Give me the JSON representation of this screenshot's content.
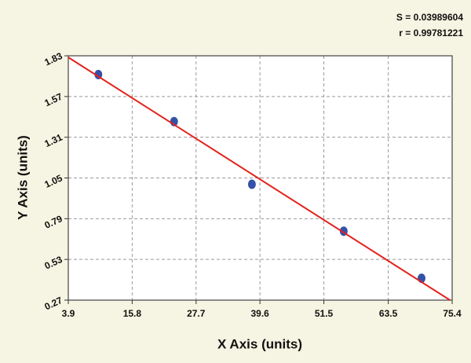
{
  "chart_data": {
    "type": "scatter",
    "annotations": [
      "S = 0.03989604",
      "r = 0.99781221"
    ],
    "xlabel": "X Axis (units)",
    "ylabel": "Y Axis (units)",
    "series": [
      {
        "type": "scatter",
        "color": "#3452a8",
        "x": [
          9.5,
          23.6,
          38.1,
          55.2,
          69.7
        ],
        "values": [
          1.71,
          1.41,
          1.01,
          0.71,
          0.41
        ]
      },
      {
        "type": "line",
        "color": "#e3221c",
        "x": [
          3.9,
          75.0
        ],
        "values": [
          1.82,
          0.27
        ]
      }
    ],
    "xlim": [
      3.9,
      75.4
    ],
    "ylim": [
      0.27,
      1.83
    ],
    "xticks": [
      3.9,
      15.8,
      27.7,
      39.6,
      51.5,
      63.5,
      75.4
    ],
    "yticks": [
      0.27,
      0.53,
      0.79,
      1.05,
      1.31,
      1.57,
      1.83
    ],
    "grid": true
  }
}
